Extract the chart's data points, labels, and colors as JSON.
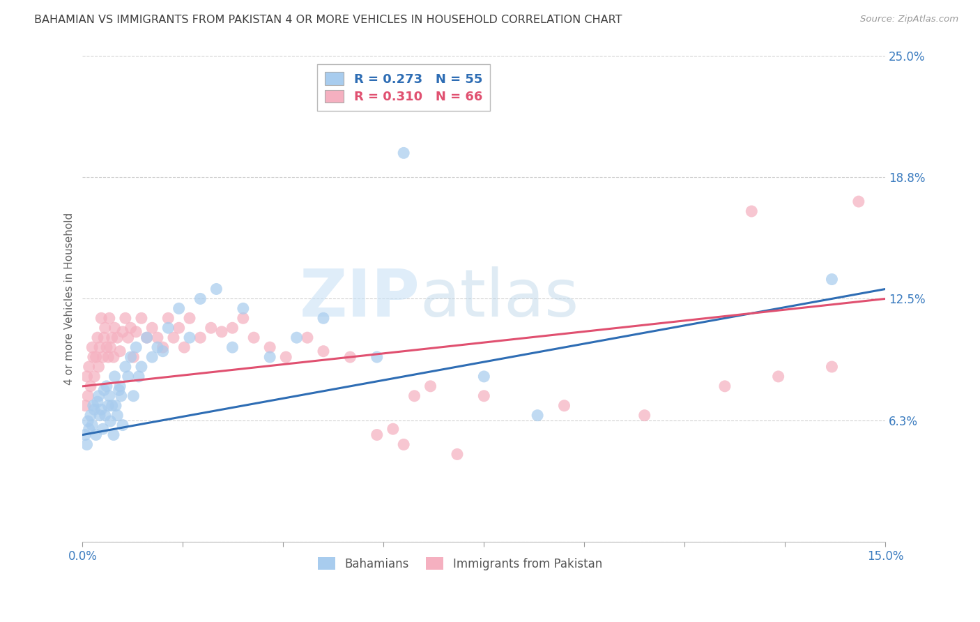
{
  "title": "BAHAMIAN VS IMMIGRANTS FROM PAKISTAN 4 OR MORE VEHICLES IN HOUSEHOLD CORRELATION CHART",
  "source": "Source: ZipAtlas.com",
  "ylabel": "4 or more Vehicles in Household",
  "x_min": 0.0,
  "x_max": 15.0,
  "y_min": 0.0,
  "y_max": 25.0,
  "x_ticks": [
    0.0,
    1.875,
    3.75,
    5.625,
    7.5,
    9.375,
    11.25,
    13.125,
    15.0
  ],
  "x_tick_labels": [
    "0.0%",
    "",
    "",
    "",
    "",
    "",
    "",
    "",
    "15.0%"
  ],
  "y_tick_positions": [
    0.0,
    6.25,
    12.5,
    18.75,
    25.0
  ],
  "y_tick_labels": [
    "",
    "6.3%",
    "12.5%",
    "18.8%",
    "25.0%"
  ],
  "blue_color": "#a8ccee",
  "pink_color": "#f5b0c0",
  "blue_line_color": "#2e6db4",
  "pink_line_color": "#e05070",
  "watermark_zip": "ZIP",
  "watermark_atlas": "atlas",
  "grid_color": "#d0d0d0",
  "title_color": "#404040",
  "tick_color": "#3a7bbf",
  "bahamians_x": [
    0.05,
    0.08,
    0.1,
    0.12,
    0.15,
    0.18,
    0.2,
    0.22,
    0.25,
    0.28,
    0.3,
    0.32,
    0.35,
    0.38,
    0.4,
    0.42,
    0.45,
    0.48,
    0.5,
    0.52,
    0.55,
    0.58,
    0.6,
    0.62,
    0.65,
    0.68,
    0.7,
    0.72,
    0.75,
    0.8,
    0.85,
    0.9,
    0.95,
    1.0,
    1.05,
    1.1,
    1.2,
    1.3,
    1.4,
    1.5,
    1.6,
    1.8,
    2.0,
    2.2,
    2.5,
    2.8,
    3.0,
    3.5,
    4.0,
    4.5,
    5.5,
    6.0,
    7.5,
    8.5,
    14.0
  ],
  "bahamians_y": [
    5.5,
    5.0,
    6.2,
    5.8,
    6.5,
    6.0,
    7.0,
    6.8,
    5.5,
    7.2,
    7.5,
    6.5,
    6.8,
    5.8,
    7.8,
    6.5,
    8.0,
    7.0,
    7.5,
    6.2,
    7.0,
    5.5,
    8.5,
    7.0,
    6.5,
    7.8,
    8.0,
    7.5,
    6.0,
    9.0,
    8.5,
    9.5,
    7.5,
    10.0,
    8.5,
    9.0,
    10.5,
    9.5,
    10.0,
    9.8,
    11.0,
    12.0,
    10.5,
    12.5,
    13.0,
    10.0,
    12.0,
    9.5,
    10.5,
    11.5,
    9.5,
    20.0,
    8.5,
    6.5,
    13.5
  ],
  "pakistan_x": [
    0.05,
    0.08,
    0.1,
    0.12,
    0.15,
    0.18,
    0.2,
    0.22,
    0.25,
    0.28,
    0.3,
    0.32,
    0.35,
    0.38,
    0.4,
    0.42,
    0.45,
    0.48,
    0.5,
    0.52,
    0.55,
    0.58,
    0.6,
    0.65,
    0.7,
    0.75,
    0.8,
    0.85,
    0.9,
    0.95,
    1.0,
    1.1,
    1.2,
    1.3,
    1.4,
    1.5,
    1.6,
    1.7,
    1.8,
    1.9,
    2.0,
    2.2,
    2.4,
    2.6,
    2.8,
    3.0,
    3.2,
    3.5,
    3.8,
    4.2,
    4.5,
    5.0,
    5.5,
    6.0,
    6.5,
    7.5,
    9.0,
    10.5,
    12.0,
    13.0,
    14.0,
    14.5,
    5.8,
    6.2,
    7.0,
    12.5
  ],
  "pakistan_y": [
    7.0,
    8.5,
    7.5,
    9.0,
    8.0,
    10.0,
    9.5,
    8.5,
    9.5,
    10.5,
    9.0,
    10.0,
    11.5,
    9.5,
    10.5,
    11.0,
    10.0,
    9.5,
    11.5,
    10.0,
    10.5,
    9.5,
    11.0,
    10.5,
    9.8,
    10.8,
    11.5,
    10.5,
    11.0,
    9.5,
    10.8,
    11.5,
    10.5,
    11.0,
    10.5,
    10.0,
    11.5,
    10.5,
    11.0,
    10.0,
    11.5,
    10.5,
    11.0,
    10.8,
    11.0,
    11.5,
    10.5,
    10.0,
    9.5,
    10.5,
    9.8,
    9.5,
    5.5,
    5.0,
    8.0,
    7.5,
    7.0,
    6.5,
    8.0,
    8.5,
    9.0,
    17.5,
    5.8,
    7.5,
    4.5,
    17.0
  ]
}
